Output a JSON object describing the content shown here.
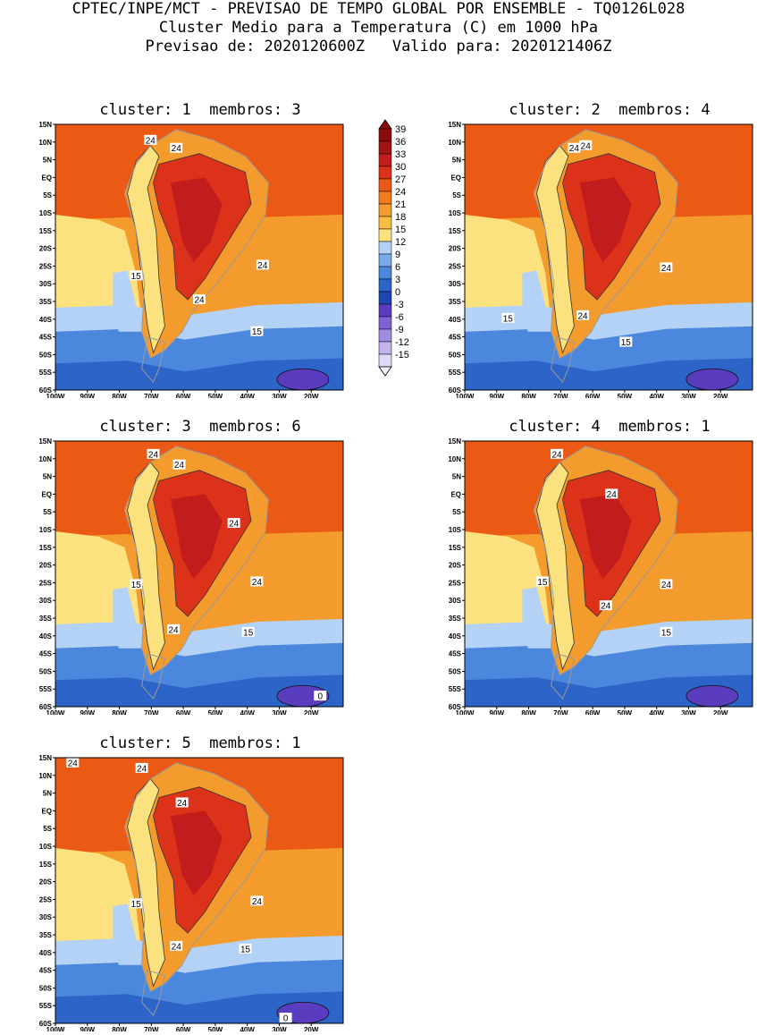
{
  "header": {
    "line1": "CPTEC/INPE/MCT - PREVISAO DE TEMPO GLOBAL POR ENSEMBLE - TQ0126L028",
    "line2": "Cluster Medio para a Temperatura (C) em 1000 hPa",
    "line3": "Previsao de: 2020120600Z   Valido para: 2020121406Z"
  },
  "panels": [
    {
      "id": "p1",
      "title": "cluster: 1  membros: 3",
      "contour_labels": [
        "24",
        "24",
        "24",
        "24",
        "15",
        "15"
      ]
    },
    {
      "id": "p2",
      "title": "cluster: 2  membros: 4",
      "contour_labels": [
        "24",
        "24",
        "24",
        "24",
        "15",
        "15"
      ]
    },
    {
      "id": "p3",
      "title": "cluster: 3  membros: 6",
      "contour_labels": [
        "24",
        "24",
        "24",
        "24",
        "24",
        "15",
        "15",
        "0"
      ]
    },
    {
      "id": "p4",
      "title": "cluster: 4  membros: 1",
      "contour_labels": [
        "24",
        "24",
        "24",
        "24",
        "15",
        "15"
      ]
    },
    {
      "id": "p5",
      "title": "cluster: 5  membros: 1",
      "contour_labels": [
        "24",
        "24",
        "24",
        "24",
        "24",
        "15",
        "15",
        "0"
      ]
    }
  ],
  "axes": {
    "lat_ticks": [
      "15N",
      "10N",
      "5N",
      "EQ",
      "5S",
      "10S",
      "15S",
      "20S",
      "25S",
      "30S",
      "35S",
      "40S",
      "45S",
      "50S",
      "55S",
      "60S"
    ],
    "lon_ticks": [
      "100W",
      "90W",
      "80W",
      "70W",
      "60W",
      "50W",
      "40W",
      "30W",
      "20W"
    ]
  },
  "colorbar": {
    "labels": [
      "39",
      "36",
      "33",
      "30",
      "27",
      "24",
      "21",
      "18",
      "15",
      "12",
      "9",
      "6",
      "3",
      "0",
      "-3",
      "-6",
      "-9",
      "-12",
      "-15"
    ],
    "colors": [
      "#8c0a0a",
      "#a51414",
      "#c21c1c",
      "#dc3219",
      "#eb5a14",
      "#f07c1e",
      "#f49b2d",
      "#f8bd44",
      "#fbe27e",
      "#b4d2f5",
      "#78aaeb",
      "#4b87dc",
      "#2d64c8",
      "#1e46b4",
      "#5a3cbe",
      "#7d64d2",
      "#a08ce1",
      "#c3b4ee",
      "#e1d7f7"
    ]
  },
  "colors": {
    "warm_ocean": "#eb5a14",
    "land_hot": "#dc3219",
    "land_hotter": "#c21c1c",
    "mid": "#f49b2d",
    "pale": "#fbe27e",
    "cool": "#b4d2f5",
    "cold": "#4b87dc",
    "colder": "#2d64c8",
    "coldest": "#5a3cbe"
  }
}
